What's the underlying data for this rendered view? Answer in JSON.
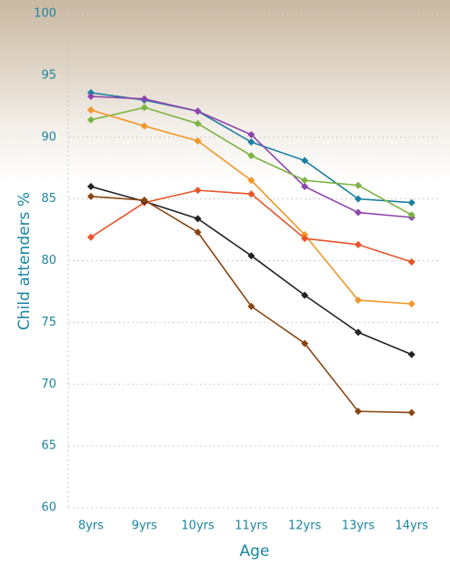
{
  "chart_data": {
    "type": "line",
    "x_label": "Age",
    "y_label": "Child attenders %",
    "categories": [
      "8yrs",
      "9yrs",
      "10yrs",
      "11yrs",
      "12yrs",
      "13yrs",
      "14yrs"
    ],
    "series": [
      {
        "color": "#1b7fa0",
        "values": [
          93.6,
          93.0,
          92.1,
          89.6,
          88.1,
          85.0,
          84.7
        ]
      },
      {
        "color": "#8e44ad",
        "values": [
          93.3,
          93.1,
          92.1,
          90.2,
          86.0,
          83.9,
          83.5
        ]
      },
      {
        "color": "#7cb342",
        "values": [
          91.4,
          92.4,
          91.1,
          88.5,
          86.5,
          86.1,
          83.7
        ]
      },
      {
        "color": "#f0962a",
        "values": [
          92.2,
          90.9,
          89.7,
          86.5,
          82.1,
          76.8,
          76.5
        ]
      },
      {
        "color": "#e8542a",
        "values": [
          81.9,
          84.7,
          85.7,
          85.4,
          81.8,
          81.3,
          79.9
        ]
      },
      {
        "color": "#222222",
        "values": [
          86.0,
          84.8,
          83.4,
          80.4,
          77.2,
          74.2,
          72.4
        ]
      },
      {
        "color": "#8b4513",
        "values": [
          85.2,
          84.9,
          82.3,
          76.3,
          73.3,
          67.8,
          67.7
        ]
      }
    ],
    "ylim": [
      60,
      100
    ],
    "yticks": [
      60,
      65,
      70,
      75,
      80,
      85,
      90,
      95,
      100
    ],
    "grid": true
  }
}
